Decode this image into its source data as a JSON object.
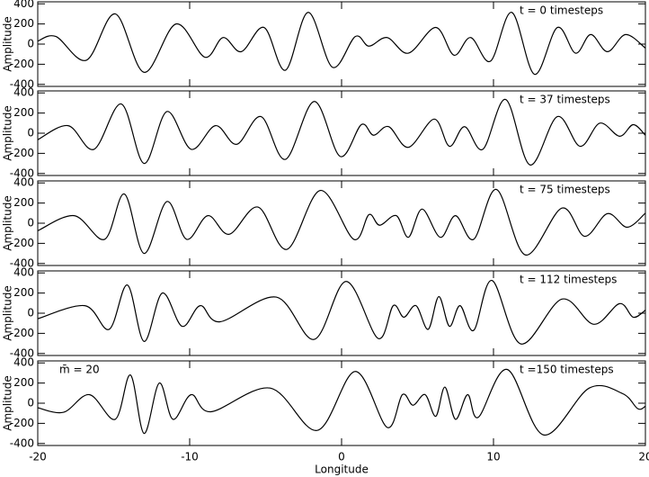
{
  "chart_data": [
    {
      "type": "line",
      "ylabel": "Amplitude",
      "annotation": "t = 0 timesteps",
      "xlim": [
        -20,
        20
      ],
      "xticks": [
        -20,
        -10,
        0,
        10,
        20
      ],
      "ylim": [
        -420,
        420
      ],
      "yticks": [
        -400,
        -200,
        0,
        200,
        400
      ],
      "color": "#000000",
      "x": [
        -20.0,
        -18.8,
        -16.8,
        -14.9,
        -13.0,
        -10.9,
        -9.0,
        -7.8,
        -6.6,
        -5.1,
        -3.7,
        -2.2,
        -0.6,
        0.9,
        1.8,
        3.0,
        4.4,
        6.2,
        7.4,
        8.5,
        9.8,
        11.2,
        12.7,
        14.2,
        15.4,
        16.4,
        17.5,
        18.7,
        20.0
      ],
      "values": [
        30,
        75,
        -160,
        300,
        -280,
        200,
        -130,
        65,
        -75,
        165,
        -260,
        315,
        -230,
        75,
        -20,
        65,
        -90,
        165,
        -110,
        65,
        -170,
        315,
        -300,
        165,
        -90,
        95,
        -75,
        95,
        -40
      ]
    },
    {
      "type": "line",
      "ylabel": "Amplitude",
      "annotation": "t = 37 timesteps",
      "xlim": [
        -20,
        20
      ],
      "xticks": [
        -20,
        -10,
        0,
        10,
        20
      ],
      "ylim": [
        -420,
        420
      ],
      "yticks": [
        -400,
        -200,
        0,
        200,
        400
      ],
      "color": "#000000",
      "x": [
        -20.0,
        -18.0,
        -16.3,
        -14.5,
        -13.0,
        -11.5,
        -9.9,
        -8.3,
        -6.9,
        -5.3,
        -3.7,
        -1.8,
        -0.1,
        1.3,
        2.1,
        3.1,
        4.4,
        6.1,
        7.1,
        8.1,
        9.3,
        10.8,
        12.4,
        14.2,
        15.7,
        17.0,
        18.3,
        19.2,
        20.0
      ],
      "values": [
        -65,
        75,
        -160,
        290,
        -300,
        215,
        -160,
        75,
        -110,
        165,
        -260,
        315,
        -230,
        85,
        -20,
        65,
        -140,
        140,
        -130,
        65,
        -160,
        335,
        -315,
        165,
        -130,
        100,
        -30,
        85,
        -20
      ]
    },
    {
      "type": "line",
      "ylabel": "Amplitude",
      "annotation": "t = 75 timesteps",
      "xlim": [
        -20,
        20
      ],
      "xticks": [
        -20,
        -10,
        0,
        10,
        20
      ],
      "ylim": [
        -420,
        420
      ],
      "yticks": [
        -400,
        -200,
        0,
        200,
        400
      ],
      "color": "#000000",
      "x": [
        -20.0,
        -17.6,
        -15.6,
        -14.3,
        -13.0,
        -11.5,
        -10.2,
        -8.8,
        -7.4,
        -5.5,
        -3.6,
        -1.4,
        0.8,
        1.8,
        2.5,
        3.6,
        4.4,
        5.3,
        6.5,
        7.5,
        8.7,
        10.2,
        12.1,
        14.5,
        16.0,
        17.5,
        18.8,
        20.0
      ],
      "values": [
        -75,
        75,
        -160,
        290,
        -300,
        215,
        -160,
        75,
        -110,
        160,
        -260,
        325,
        -160,
        85,
        -20,
        75,
        -140,
        140,
        -140,
        75,
        -160,
        335,
        -315,
        150,
        -130,
        95,
        -40,
        100
      ]
    },
    {
      "type": "line",
      "ylabel": "Amplitude",
      "annotation": "t = 112 timesteps",
      "xlim": [
        -20,
        20
      ],
      "xticks": [
        -20,
        -10,
        0,
        10,
        20
      ],
      "ylim": [
        -420,
        420
      ],
      "yticks": [
        -400,
        -200,
        0,
        200,
        400
      ],
      "color": "#000000",
      "x": [
        -20.0,
        -16.9,
        -15.3,
        -14.1,
        -13.0,
        -11.8,
        -10.5,
        -9.3,
        -8.0,
        -4.3,
        -1.8,
        0.3,
        2.4,
        3.4,
        4.1,
        4.9,
        5.7,
        6.4,
        7.1,
        7.8,
        8.7,
        9.9,
        11.8,
        14.5,
        16.6,
        18.3,
        19.2,
        20.0
      ],
      "values": [
        -55,
        75,
        -160,
        280,
        -280,
        200,
        -130,
        75,
        -85,
        160,
        -260,
        315,
        -250,
        75,
        -40,
        75,
        -160,
        165,
        -130,
        75,
        -170,
        325,
        -305,
        140,
        -110,
        95,
        -40,
        30
      ]
    },
    {
      "type": "line",
      "ylabel": "Amplitude",
      "annotation": "t =150 timesteps",
      "label": "m̄ = 20",
      "xlabel": "Longitude",
      "xlim": [
        -20,
        20
      ],
      "xticks": [
        -20,
        -10,
        0,
        10,
        20
      ],
      "ylim": [
        -420,
        420
      ],
      "yticks": [
        -400,
        -200,
        0,
        200,
        400
      ],
      "color": "#000000",
      "x": [
        -20.0,
        -18.3,
        -16.6,
        -14.9,
        -13.9,
        -13.0,
        -12.0,
        -11.1,
        -9.9,
        -8.6,
        -4.7,
        -1.6,
        0.9,
        3.0,
        4.0,
        4.7,
        5.5,
        6.2,
        6.8,
        7.5,
        8.3,
        9.0,
        10.9,
        13.3,
        16.3,
        18.5,
        19.5,
        20.0
      ],
      "values": [
        -45,
        -90,
        85,
        -160,
        280,
        -300,
        200,
        -160,
        85,
        -85,
        150,
        -270,
        315,
        -240,
        85,
        -20,
        85,
        -130,
        160,
        -160,
        85,
        -140,
        335,
        -315,
        150,
        95,
        -55,
        -30
      ]
    }
  ]
}
